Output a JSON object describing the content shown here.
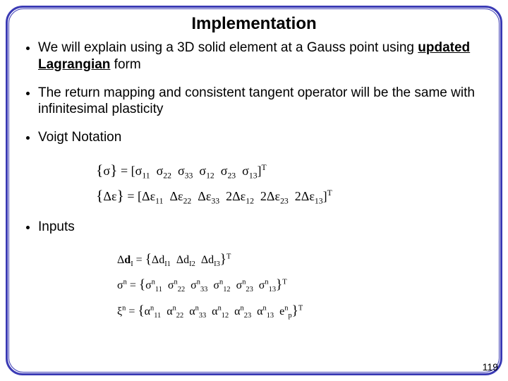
{
  "title": "Implementation",
  "bullets": {
    "b1_pre": "We will explain using a 3D solid element at a Gauss point using ",
    "b1_bold": "updated Lagrangian",
    "b1_post": " form",
    "b2": "The return mapping and consistent tangent operator will be the same with infinitesimal plasticity",
    "b3": "Voigt Notation",
    "b4": "Inputs"
  },
  "math": {
    "sigma_lhs": "{σ} = [σ",
    "sigma_idx": [
      "11",
      "22",
      "33",
      "12",
      "23",
      "13"
    ],
    "sigma_rhs": "]",
    "T": "T",
    "deps_lhs": "{Δε} = [Δε",
    "deps_coeff2": "2Δε",
    "deps_idx_a": [
      "11",
      "22",
      "33"
    ],
    "deps_idx_b": [
      "12",
      "23",
      "13"
    ],
    "dd_lhs": "Δd",
    "dd_sub": "I",
    "dd_eq": " = ",
    "dd_entries": [
      "I1",
      "I2",
      "I3"
    ],
    "dd_pre": "Δd",
    "sigman_lhs": "σ",
    "n": "n",
    "eq": " = ",
    "sigman_idx": [
      "11",
      "22",
      "33",
      "12",
      "23",
      "13"
    ],
    "xi_lhs": "ξ",
    "alpha": "α",
    "xi_idx": [
      "11",
      "22",
      "33",
      "12",
      "23",
      "13"
    ],
    "ep": "e",
    "ep_sub": "p"
  },
  "page": "119",
  "colors": {
    "border": "#3b3bb5",
    "text": "#000000",
    "bg": "#ffffff"
  }
}
